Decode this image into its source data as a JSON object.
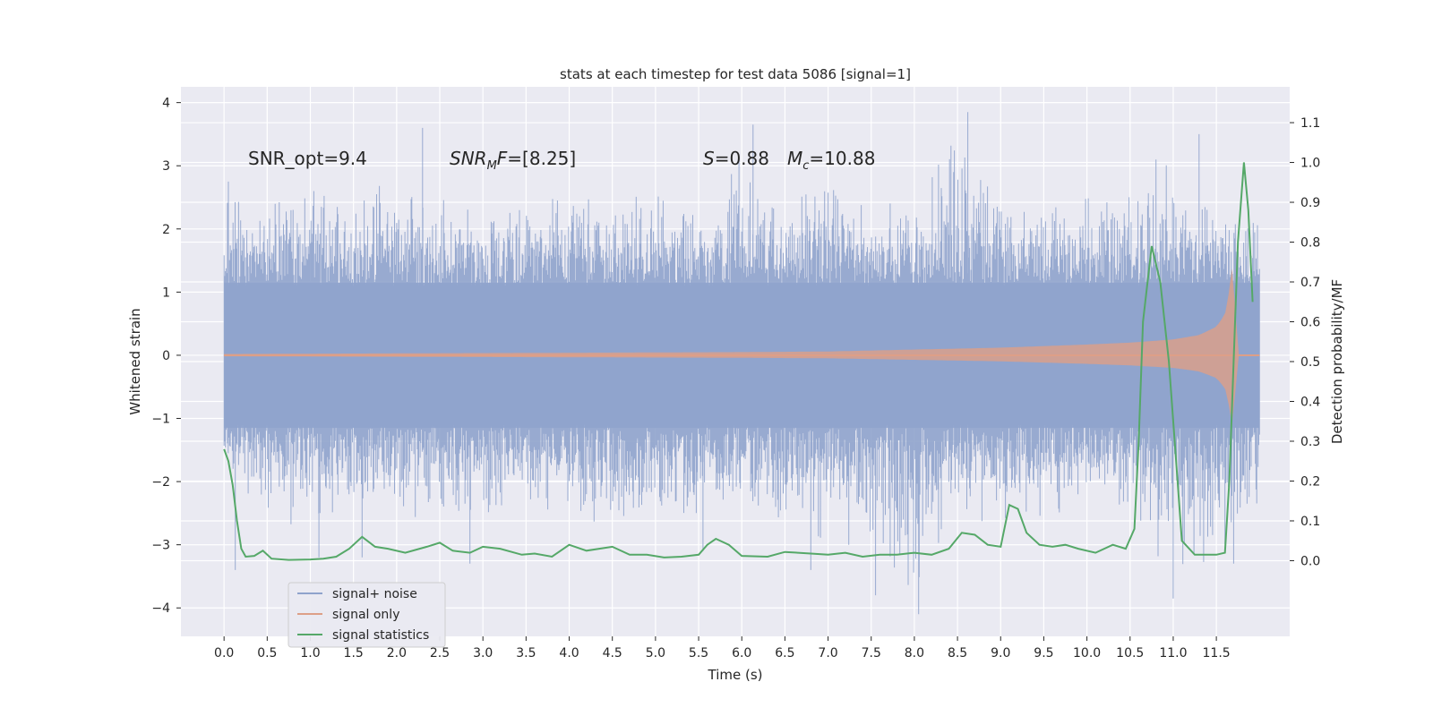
{
  "chart_data": {
    "type": "line",
    "title": "stats at each timestep for test data 5086 [signal=1]",
    "xlabel": "Time (s)",
    "ylabel": "Whitened strain",
    "y2label": "Detection probability/MF",
    "xlim": [
      -0.5,
      12.35
    ],
    "ylim": [
      -4.45,
      4.25
    ],
    "y2lim": [
      -0.19,
      1.19
    ],
    "x_ticks": [
      "0.0",
      "0.5",
      "1.0",
      "1.5",
      "2.0",
      "2.5",
      "3.0",
      "3.5",
      "4.0",
      "4.5",
      "5.0",
      "5.5",
      "6.0",
      "6.5",
      "7.0",
      "7.5",
      "8.0",
      "8.5",
      "9.0",
      "9.5",
      "10.0",
      "10.5",
      "11.0",
      "11.5"
    ],
    "y_ticks": [
      "4",
      "3",
      "2",
      "1",
      "0",
      "−1",
      "−2",
      "−3",
      "−4"
    ],
    "y2_ticks": [
      "1.1",
      "1.0",
      "0.9",
      "0.8",
      "0.7",
      "0.6",
      "0.5",
      "0.4",
      "0.3",
      "0.2",
      "0.1",
      "0.0"
    ],
    "grid": true,
    "legend_position": "lower-left",
    "annotations": {
      "snr_opt": "SNR_opt=9.4",
      "snr_mf_name": "SNR",
      "snr_mf_sub": "M",
      "snr_mf_tail": "F",
      "snr_mf_value": "=[8.25]",
      "s_name": "S",
      "s_value": "=0.88",
      "mc_name": "M",
      "mc_sub": "c",
      "mc_value": "=10.88"
    },
    "series": [
      {
        "name": "signal+ noise",
        "color": "#8fa3cc",
        "axis": "left",
        "x_range": [
          0.0,
          12.0
        ],
        "envelope_upper": [
          [
            0.0,
            2.7
          ],
          [
            0.5,
            2.6
          ],
          [
            1.0,
            2.9
          ],
          [
            1.5,
            2.6
          ],
          [
            2.0,
            2.9
          ],
          [
            2.5,
            2.5
          ],
          [
            3.0,
            2.4
          ],
          [
            3.5,
            2.6
          ],
          [
            4.0,
            2.8
          ],
          [
            4.5,
            2.5
          ],
          [
            5.0,
            2.7
          ],
          [
            5.5,
            2.3
          ],
          [
            6.0,
            3.6
          ],
          [
            6.5,
            2.4
          ],
          [
            7.0,
            2.9
          ],
          [
            7.5,
            2.4
          ],
          [
            8.0,
            2.6
          ],
          [
            8.5,
            3.8
          ],
          [
            9.0,
            2.9
          ],
          [
            9.5,
            2.4
          ],
          [
            10.0,
            2.6
          ],
          [
            10.5,
            2.7
          ],
          [
            11.0,
            3.1
          ],
          [
            11.5,
            2.3
          ],
          [
            12.0,
            2.4
          ]
        ],
        "envelope_lower": [
          [
            0.0,
            -1.8
          ],
          [
            0.5,
            -2.9
          ],
          [
            1.0,
            -2.6
          ],
          [
            1.5,
            -2.7
          ],
          [
            2.0,
            -2.5
          ],
          [
            2.5,
            -2.9
          ],
          [
            3.0,
            -2.8
          ],
          [
            3.5,
            -2.4
          ],
          [
            4.0,
            -2.7
          ],
          [
            4.5,
            -2.9
          ],
          [
            5.0,
            -2.6
          ],
          [
            5.5,
            -2.7
          ],
          [
            6.0,
            -2.5
          ],
          [
            6.5,
            -2.8
          ],
          [
            7.0,
            -3.1
          ],
          [
            7.5,
            -3.5
          ],
          [
            8.0,
            -4.0
          ],
          [
            8.5,
            -2.9
          ],
          [
            9.0,
            -2.7
          ],
          [
            9.5,
            -2.8
          ],
          [
            10.0,
            -2.5
          ],
          [
            10.5,
            -2.6
          ],
          [
            11.0,
            -3.8
          ],
          [
            11.5,
            -3.3
          ],
          [
            12.0,
            -2.4
          ]
        ],
        "peaks": [
          [
            0.05,
            2.75
          ],
          [
            0.13,
            -3.4
          ],
          [
            1.1,
            -3.2
          ],
          [
            1.6,
            -3.2
          ],
          [
            2.3,
            3.6
          ],
          [
            2.85,
            -3.3
          ],
          [
            5.55,
            -3.1
          ],
          [
            6.13,
            3.65
          ],
          [
            6.8,
            -3.4
          ],
          [
            7.55,
            -3.8
          ],
          [
            8.05,
            -4.1
          ],
          [
            8.62,
            3.85
          ],
          [
            10.8,
            3.1
          ],
          [
            11.0,
            -3.85
          ],
          [
            11.3,
            3.5
          ],
          [
            11.7,
            -3.3
          ]
        ]
      },
      {
        "name": "signal only",
        "color": "#dd9f87",
        "axis": "left",
        "amplitude": [
          [
            0.0,
            0.02
          ],
          [
            2.0,
            0.03
          ],
          [
            4.0,
            0.04
          ],
          [
            6.0,
            0.05
          ],
          [
            7.0,
            0.06
          ],
          [
            8.0,
            0.09
          ],
          [
            9.0,
            0.12
          ],
          [
            10.0,
            0.17
          ],
          [
            10.5,
            0.2
          ],
          [
            11.0,
            0.25
          ],
          [
            11.3,
            0.32
          ],
          [
            11.5,
            0.45
          ],
          [
            11.6,
            0.65
          ],
          [
            11.66,
            1.1
          ],
          [
            11.7,
            1.6
          ],
          [
            11.73,
            0.3
          ],
          [
            11.76,
            0.0
          ]
        ]
      },
      {
        "name": "signal statistics",
        "color": "#55a868",
        "axis": "right",
        "points": [
          [
            0.0,
            0.28
          ],
          [
            0.05,
            0.25
          ],
          [
            0.1,
            0.19
          ],
          [
            0.15,
            0.1
          ],
          [
            0.2,
            0.03
          ],
          [
            0.25,
            0.01
          ],
          [
            0.35,
            0.012
          ],
          [
            0.45,
            0.025
          ],
          [
            0.55,
            0.005
          ],
          [
            0.75,
            0.002
          ],
          [
            1.0,
            0.003
          ],
          [
            1.15,
            0.005
          ],
          [
            1.3,
            0.01
          ],
          [
            1.45,
            0.03
          ],
          [
            1.6,
            0.06
          ],
          [
            1.75,
            0.035
          ],
          [
            1.9,
            0.03
          ],
          [
            2.1,
            0.02
          ],
          [
            2.35,
            0.035
          ],
          [
            2.5,
            0.045
          ],
          [
            2.65,
            0.025
          ],
          [
            2.85,
            0.02
          ],
          [
            3.0,
            0.035
          ],
          [
            3.2,
            0.03
          ],
          [
            3.45,
            0.015
          ],
          [
            3.6,
            0.018
          ],
          [
            3.8,
            0.01
          ],
          [
            4.0,
            0.04
          ],
          [
            4.2,
            0.025
          ],
          [
            4.5,
            0.035
          ],
          [
            4.7,
            0.015
          ],
          [
            4.9,
            0.015
          ],
          [
            5.1,
            0.008
          ],
          [
            5.3,
            0.01
          ],
          [
            5.5,
            0.015
          ],
          [
            5.6,
            0.04
          ],
          [
            5.7,
            0.055
          ],
          [
            5.85,
            0.04
          ],
          [
            6.0,
            0.012
          ],
          [
            6.3,
            0.01
          ],
          [
            6.5,
            0.022
          ],
          [
            6.8,
            0.018
          ],
          [
            7.0,
            0.015
          ],
          [
            7.2,
            0.02
          ],
          [
            7.4,
            0.01
          ],
          [
            7.6,
            0.015
          ],
          [
            7.8,
            0.015
          ],
          [
            8.0,
            0.02
          ],
          [
            8.2,
            0.015
          ],
          [
            8.4,
            0.03
          ],
          [
            8.55,
            0.07
          ],
          [
            8.7,
            0.065
          ],
          [
            8.85,
            0.04
          ],
          [
            9.0,
            0.035
          ],
          [
            9.1,
            0.14
          ],
          [
            9.2,
            0.13
          ],
          [
            9.3,
            0.07
          ],
          [
            9.45,
            0.04
          ],
          [
            9.6,
            0.035
          ],
          [
            9.75,
            0.04
          ],
          [
            9.9,
            0.03
          ],
          [
            10.1,
            0.02
          ],
          [
            10.3,
            0.04
          ],
          [
            10.45,
            0.03
          ],
          [
            10.55,
            0.08
          ],
          [
            10.6,
            0.3
          ],
          [
            10.65,
            0.6
          ],
          [
            10.75,
            0.79
          ],
          [
            10.85,
            0.7
          ],
          [
            10.95,
            0.5
          ],
          [
            11.05,
            0.2
          ],
          [
            11.1,
            0.05
          ],
          [
            11.25,
            0.015
          ],
          [
            11.5,
            0.015
          ],
          [
            11.6,
            0.02
          ],
          [
            11.65,
            0.2
          ],
          [
            11.7,
            0.5
          ],
          [
            11.75,
            0.8
          ],
          [
            11.82,
            1.0
          ],
          [
            11.87,
            0.88
          ],
          [
            11.92,
            0.65
          ]
        ]
      }
    ]
  }
}
